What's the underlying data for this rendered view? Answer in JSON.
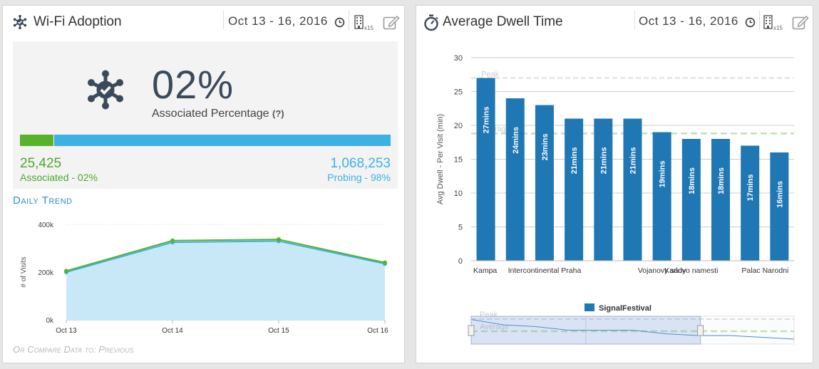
{
  "left_card": {
    "title": "Wi-Fi Adoption",
    "date_range": "Oct 13 - 16, 2016",
    "site_count": "x15",
    "percentage": "02%",
    "percentage_label": "Associated Percentage",
    "help": "(?)",
    "associated_share": 0.02,
    "associated_count": "25,425",
    "associated_label": "Associated - 02%",
    "probing_count": "1,068,253",
    "probing_label": "Probing - 98%",
    "colors": {
      "associated": "#58b22a",
      "probing": "#3eb1e4",
      "accent": "#2f8fc5"
    },
    "daily_trend_title": "Daily Trend",
    "compare_text": "Or Compare Data to: Previous"
  },
  "right_card": {
    "title": "Average Dwell Time",
    "date_range": "Oct 13 - 16, 2016",
    "site_count": "x15",
    "legend_label": "SignalFestival",
    "navigator_labels": {
      "peak": "Peak",
      "average": "Average"
    }
  },
  "chart_data": [
    {
      "type": "area",
      "title": "Daily Trend",
      "ylabel": "# of Visits",
      "x": [
        "Oct 13",
        "Oct 14",
        "Oct 15",
        "Oct 16"
      ],
      "ylim": [
        0,
        400000
      ],
      "yticks": [
        0,
        200000,
        400000
      ],
      "ytick_labels": [
        "0k",
        "200k",
        "400k"
      ],
      "series": [
        {
          "name": "Probing",
          "color": "#3eb1e4",
          "values": [
            200000,
            325000,
            330000,
            235000
          ]
        },
        {
          "name": "Associated",
          "color": "#58b22a",
          "values": [
            205000,
            332000,
            337000,
            240000
          ]
        }
      ]
    },
    {
      "type": "bar",
      "ylabel": "Avg Dwell - Per Visit (min)",
      "ylim": [
        0,
        30
      ],
      "yticks": [
        0,
        5,
        10,
        15,
        20,
        25,
        30
      ],
      "categories": [
        "Kampa",
        "",
        "Intercontinental Praha",
        "",
        "",
        "",
        "Vojanovy sady",
        "Karlovo namesti",
        "",
        "",
        "Palac Narodni"
      ],
      "values": [
        27,
        24,
        23,
        21,
        21,
        21,
        19,
        18,
        18,
        17,
        16
      ],
      "labels": [
        "27mins",
        "24mins",
        "23mins",
        "21mins",
        "21mins",
        "21mins",
        "19mins",
        "18mins",
        "18mins",
        "17mins",
        "16mins"
      ],
      "series_name": "SignalFestival",
      "color": "#1f77b4",
      "reference_lines": [
        {
          "name": "Peak",
          "value": 27,
          "color": "#dddddd"
        },
        {
          "name": "Average",
          "value": 18.8,
          "color": "#bfe3b4"
        }
      ]
    }
  ]
}
